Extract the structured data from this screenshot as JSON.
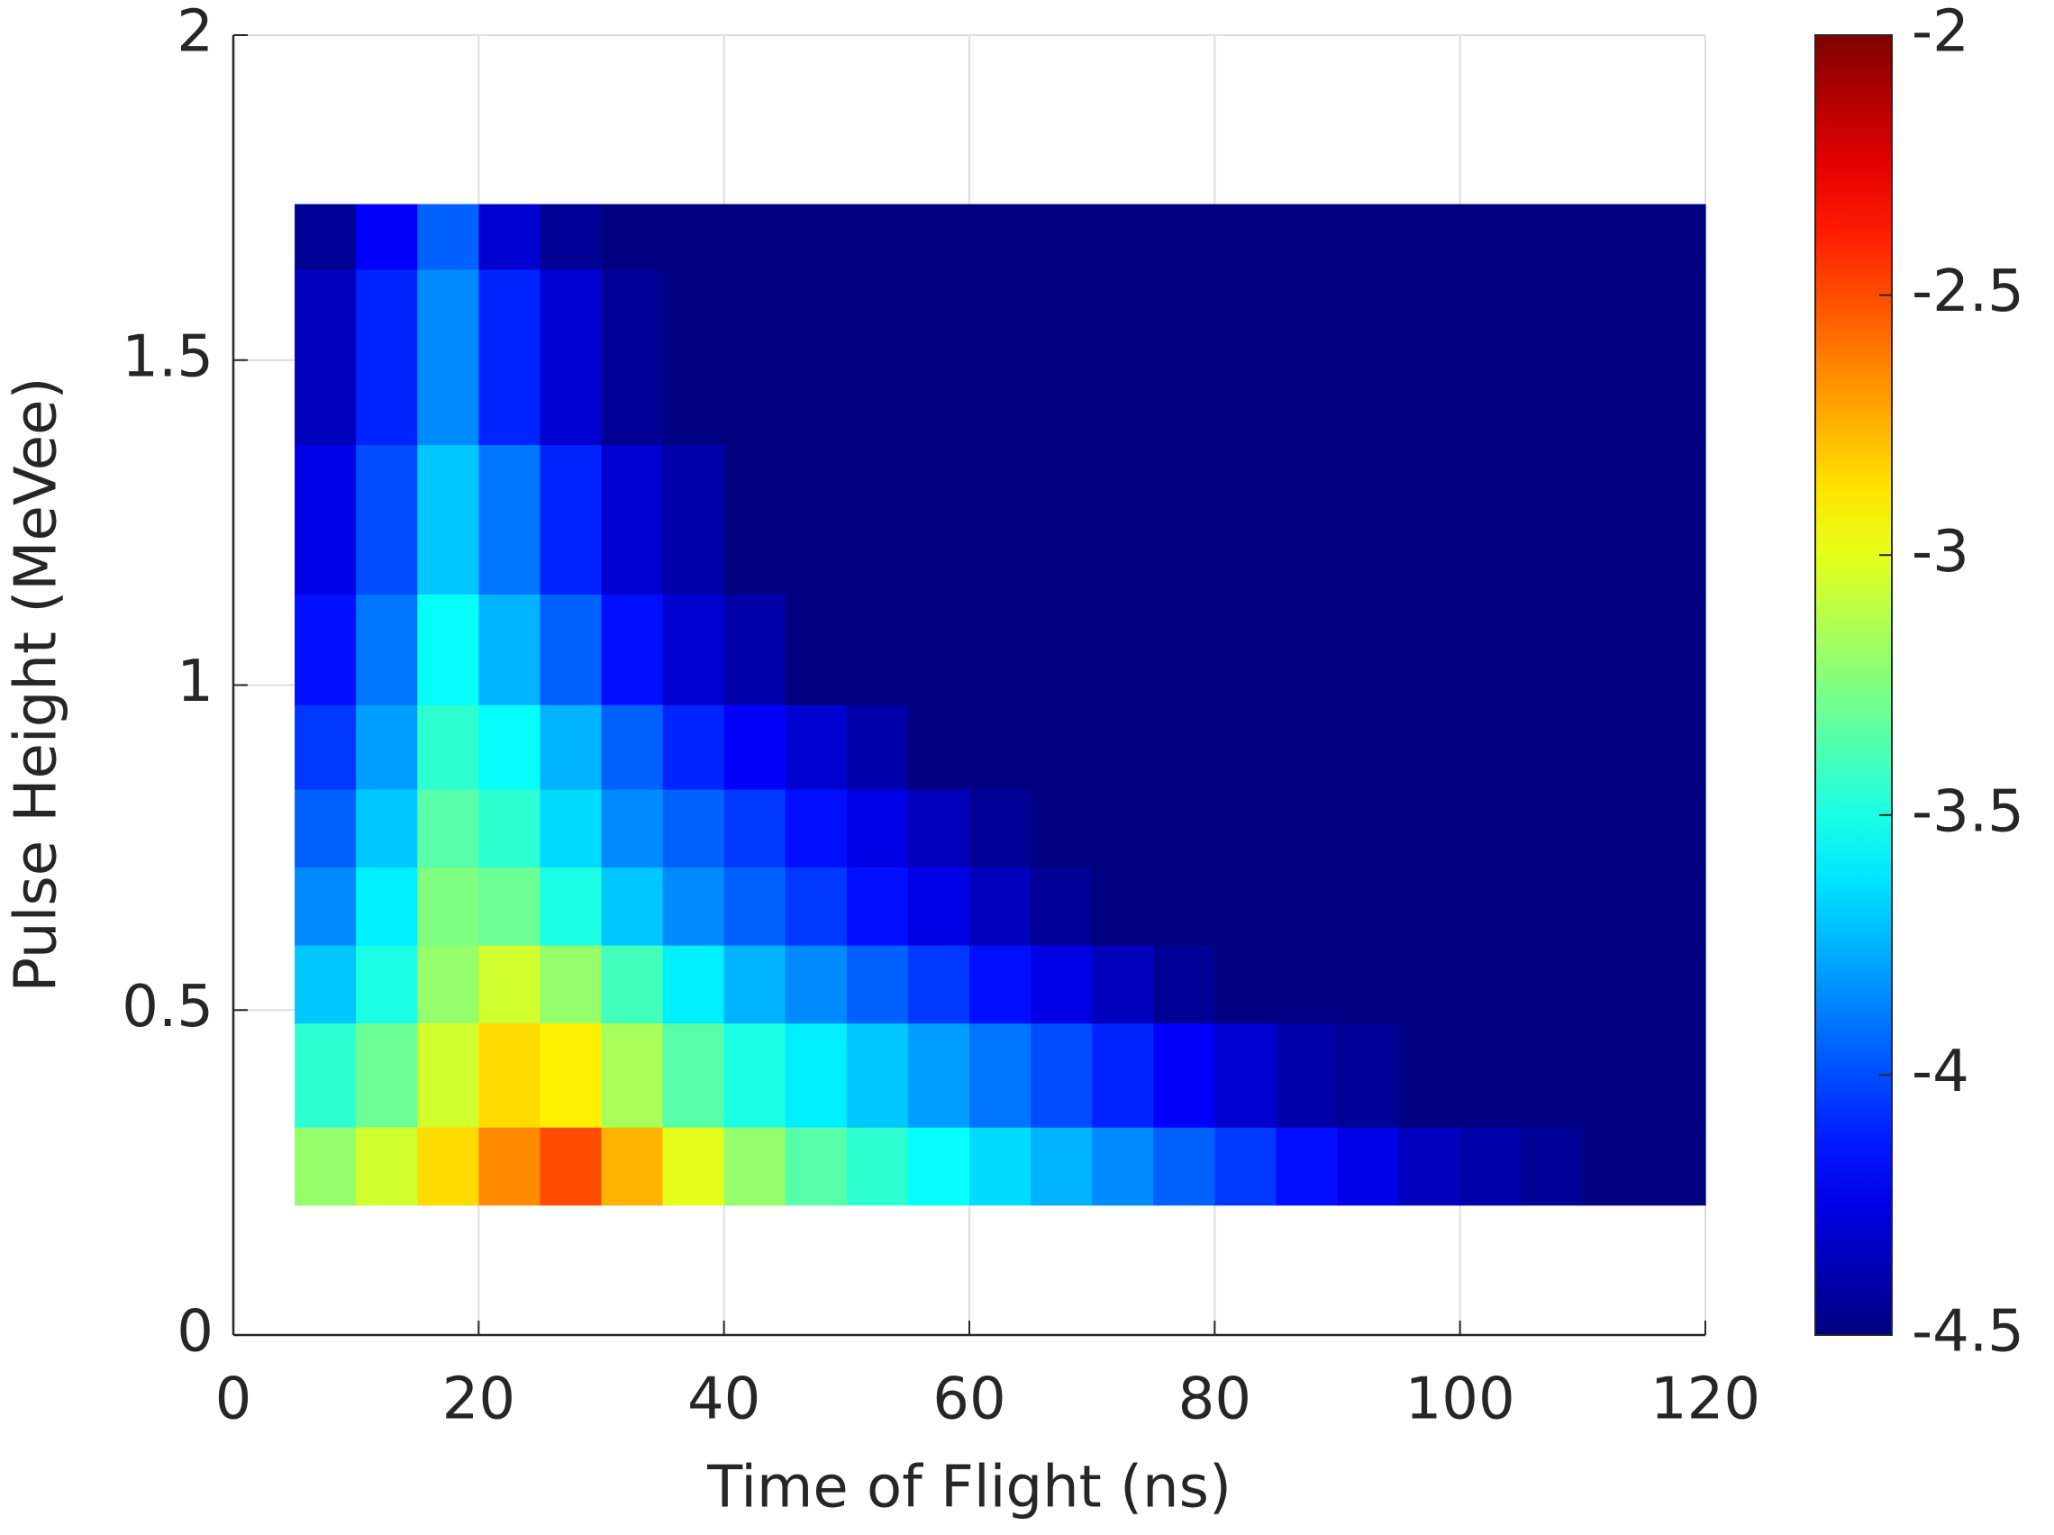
{
  "chart_data": {
    "type": "heatmap",
    "xlabel": "Time of Flight (ns)",
    "ylabel": "Pulse Height (MeVee)",
    "xlim": [
      0,
      120
    ],
    "xticks": [
      0,
      20,
      40,
      60,
      80,
      100,
      120
    ],
    "ylim": [
      0,
      2
    ],
    "yticks": [
      0,
      0.5,
      1,
      1.5,
      2
    ],
    "grid": true,
    "colormap": "jet",
    "clim": [
      -4.5,
      -2
    ],
    "cticks": [
      -4.5,
      -4,
      -3.5,
      -3,
      -2.5,
      -2
    ],
    "xbins": [
      5,
      10,
      15,
      20,
      25,
      30,
      35,
      40,
      45,
      50,
      55,
      60,
      65,
      70,
      75,
      80,
      85,
      90,
      95,
      100,
      105,
      110,
      115,
      120
    ],
    "ybins": [
      0.2,
      0.32,
      0.48,
      0.6,
      0.72,
      0.84,
      0.97,
      1.14,
      1.37,
      1.64,
      1.74
    ],
    "z": [
      [
        -3.2,
        -3.05,
        -2.85,
        -2.65,
        -2.5,
        -2.75,
        -3.0,
        -3.2,
        -3.35,
        -3.45,
        -3.55,
        -3.65,
        -3.75,
        -3.85,
        -3.95,
        -4.05,
        -4.15,
        -4.25,
        -4.35,
        -4.4,
        -4.45,
        -4.5,
        -4.5
      ],
      [
        -3.45,
        -3.3,
        -3.05,
        -2.85,
        -2.9,
        -3.15,
        -3.35,
        -3.5,
        -3.6,
        -3.7,
        -3.8,
        -3.9,
        -4.0,
        -4.1,
        -4.2,
        -4.3,
        -4.4,
        -4.45,
        -4.5,
        -4.5,
        -4.5,
        -4.5,
        -4.5
      ],
      [
        -3.7,
        -3.5,
        -3.2,
        -3.05,
        -3.2,
        -3.4,
        -3.6,
        -3.75,
        -3.85,
        -3.95,
        -4.05,
        -4.15,
        -4.25,
        -4.35,
        -4.45,
        -4.5,
        -4.5,
        -4.5,
        -4.5,
        -4.5,
        -4.5,
        -4.5,
        -4.5
      ],
      [
        -3.85,
        -3.6,
        -3.25,
        -3.3,
        -3.5,
        -3.7,
        -3.85,
        -3.95,
        -4.05,
        -4.15,
        -4.25,
        -4.35,
        -4.45,
        -4.5,
        -4.5,
        -4.5,
        -4.5,
        -4.5,
        -4.5,
        -4.5,
        -4.5,
        -4.5,
        -4.5
      ],
      [
        -3.95,
        -3.7,
        -3.35,
        -3.45,
        -3.65,
        -3.85,
        -3.95,
        -4.05,
        -4.15,
        -4.25,
        -4.35,
        -4.45,
        -4.5,
        -4.5,
        -4.5,
        -4.5,
        -4.5,
        -4.5,
        -4.5,
        -4.5,
        -4.5,
        -4.5,
        -4.5
      ],
      [
        -4.05,
        -3.8,
        -3.45,
        -3.55,
        -3.75,
        -3.95,
        -4.1,
        -4.2,
        -4.3,
        -4.4,
        -4.5,
        -4.5,
        -4.5,
        -4.5,
        -4.5,
        -4.5,
        -4.5,
        -4.5,
        -4.5,
        -4.5,
        -4.5,
        -4.5,
        -4.5
      ],
      [
        -4.15,
        -3.9,
        -3.55,
        -3.75,
        -3.95,
        -4.15,
        -4.3,
        -4.4,
        -4.5,
        -4.5,
        -4.5,
        -4.5,
        -4.5,
        -4.5,
        -4.5,
        -4.5,
        -4.5,
        -4.5,
        -4.5,
        -4.5,
        -4.5,
        -4.5,
        -4.5
      ],
      [
        -4.25,
        -4.0,
        -3.7,
        -3.9,
        -4.1,
        -4.3,
        -4.4,
        -4.5,
        -4.5,
        -4.5,
        -4.5,
        -4.5,
        -4.5,
        -4.5,
        -4.5,
        -4.5,
        -4.5,
        -4.5,
        -4.5,
        -4.5,
        -4.5,
        -4.5,
        -4.5
      ],
      [
        -4.35,
        -4.1,
        -3.85,
        -4.1,
        -4.3,
        -4.45,
        -4.5,
        -4.5,
        -4.5,
        -4.5,
        -4.5,
        -4.5,
        -4.5,
        -4.5,
        -4.5,
        -4.5,
        -4.5,
        -4.5,
        -4.5,
        -4.5,
        -4.5,
        -4.5,
        -4.5
      ],
      [
        -4.45,
        -4.2,
        -3.95,
        -4.3,
        -4.45,
        -4.5,
        -4.5,
        -4.5,
        -4.5,
        -4.5,
        -4.5,
        -4.5,
        -4.5,
        -4.5,
        -4.5,
        -4.5,
        -4.5,
        -4.5,
        -4.5,
        -4.5,
        -4.5,
        -4.5,
        -4.5
      ]
    ]
  }
}
